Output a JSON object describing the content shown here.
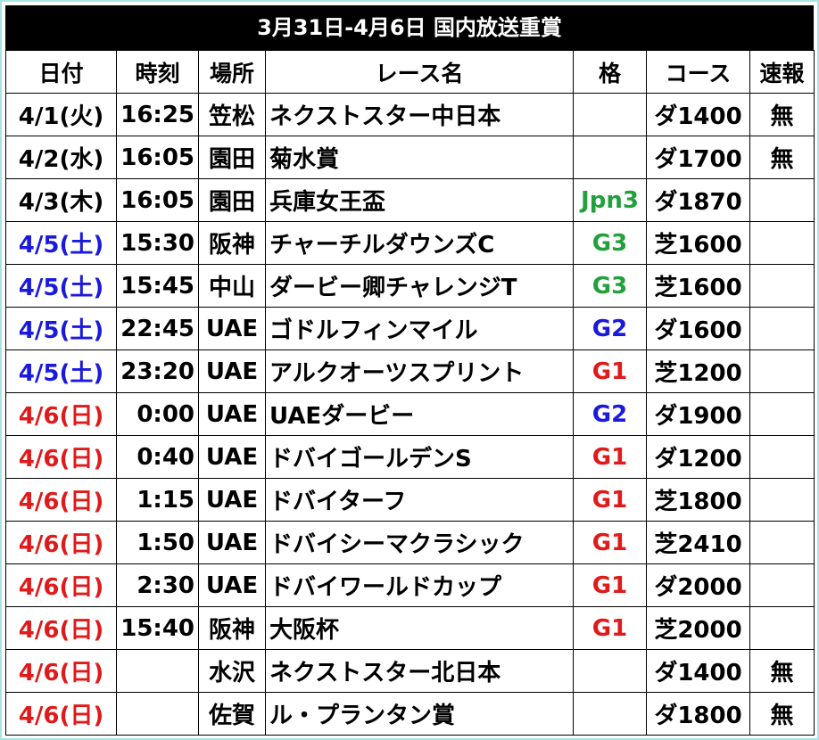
{
  "title": "3月31日-4月6日 国内放送重賞",
  "table": {
    "header": [
      "日付",
      "時刻",
      "場所",
      "レース名",
      "格",
      "コース",
      "速報"
    ],
    "rows": [
      {
        "date": "4/1(火)",
        "time": "16:25",
        "venue": "笠松",
        "race": "ネクストスター中日本",
        "course": "ダ1400",
        "note": "無",
        "date_color": "#000000"
      },
      {
        "date": "4/2(水)",
        "time": "16:05",
        "venue": "園田",
        "race": "菊水賞",
        "course": "ダ1700",
        "note": "無",
        "date_color": "#000000"
      },
      {
        "date": "4/3(木)",
        "time": "16:05",
        "venue": "園田",
        "race": "兵庫女王盃",
        "grade": "Jpn3",
        "course": "ダ1870",
        "date_color": "#000000",
        "grade_color": "#22a03c"
      },
      {
        "date": "4/5(土)",
        "time": "15:30",
        "venue": "阪神",
        "race": "チャーチルダウンズC",
        "grade": "G3",
        "course": "芝1600",
        "date_color": "#1a1adc",
        "grade_color": "#22a03c"
      },
      {
        "date": "4/5(土)",
        "time": "15:45",
        "venue": "中山",
        "race": "ダービー卿チャレンジT",
        "grade": "G3",
        "course": "芝1600",
        "date_color": "#1a1adc",
        "grade_color": "#22a03c"
      },
      {
        "date": "4/5(土)",
        "time": "22:45",
        "venue": "UAE",
        "race": "ゴドルフィンマイル",
        "grade": "G2",
        "course": "ダ1600",
        "date_color": "#1a1adc",
        "grade_color": "#1a1adc"
      },
      {
        "date": "4/5(土)",
        "time": "23:20",
        "venue": "UAE",
        "race": "アルクオーツスプリント",
        "grade": "G1",
        "course": "芝1200",
        "date_color": "#1a1adc",
        "grade_color": "#e01a1a"
      },
      {
        "date": "4/6(日)",
        "time": "0:00",
        "venue": "UAE",
        "race": "UAEダービー",
        "grade": "G2",
        "course": "ダ1900",
        "date_color": "#e01a1a",
        "grade_color": "#1a1adc"
      },
      {
        "date": "4/6(日)",
        "time": "0:40",
        "venue": "UAE",
        "race": "ドバイゴールデンS",
        "grade": "G1",
        "course": "ダ1200",
        "date_color": "#e01a1a",
        "grade_color": "#e01a1a"
      },
      {
        "date": "4/6(日)",
        "time": "1:15",
        "venue": "UAE",
        "race": "ドバイターフ",
        "grade": "G1",
        "course": "芝1800",
        "date_color": "#e01a1a",
        "grade_color": "#e01a1a"
      },
      {
        "date": "4/6(日)",
        "time": "1:50",
        "venue": "UAE",
        "race": "ドバイシーマクラシック",
        "grade": "G1",
        "course": "芝2410",
        "date_color": "#e01a1a",
        "grade_color": "#e01a1a"
      },
      {
        "date": "4/6(日)",
        "time": "2:30",
        "venue": "UAE",
        "race": "ドバイワールドカップ",
        "grade": "G1",
        "course": "ダ2000",
        "date_color": "#e01a1a",
        "grade_color": "#e01a1a"
      },
      {
        "date": "4/6(日)",
        "time": "15:40",
        "venue": "阪神",
        "race": "大阪杯",
        "grade": "G1",
        "course": "芝2000",
        "date_color": "#e01a1a",
        "grade_color": "#e01a1a"
      },
      {
        "date": "4/6(日)",
        "venue": "水沢",
        "race": "ネクストスター北日本",
        "course": "ダ1400",
        "note": "無",
        "date_color": "#e01a1a"
      },
      {
        "date": "4/6(日)",
        "venue": "佐賀",
        "race": "ル・プランタン賞",
        "course": "ダ1800",
        "note": "無",
        "date_color": "#e01a1a"
      }
    ]
  }
}
